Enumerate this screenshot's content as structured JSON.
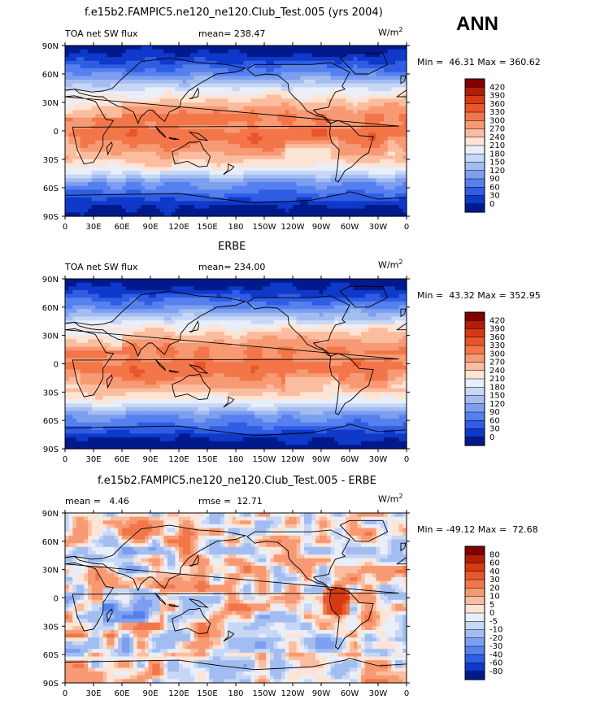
{
  "page": {
    "season": "ANN",
    "title_test": "f.e15b2.FAMPIC5.ne120_ne120.Club_Test.005 (yrs 2004)",
    "title_obs": "ERBE",
    "title_diff": "f.e15b2.FAMPIC5.ne120_ne120.Club_Test.005 - ERBE"
  },
  "chart_data": [
    {
      "type": "heatmap",
      "name": "model",
      "variable": "TOA net SW flux",
      "units": "W/m",
      "units_sup": "2",
      "stat_label": "mean=",
      "stat_value": "238.47",
      "min_label": "Min =",
      "min_value": "46.31",
      "max_label": "Max =",
      "max_value": "360.62",
      "xlim": [
        0,
        360
      ],
      "ylim": [
        -90,
        90
      ],
      "xticks": [
        "0",
        "30E",
        "60E",
        "90E",
        "120E",
        "150E",
        "180",
        "150W",
        "120W",
        "90W",
        "60W",
        "30W",
        "0"
      ],
      "yticks": [
        "90N",
        "60N",
        "30N",
        "0",
        "30S",
        "60S",
        "90S"
      ],
      "colorbar": [
        "420",
        "390",
        "360",
        "330",
        "300",
        "270",
        "240",
        "210",
        "180",
        "150",
        "120",
        "90",
        "60",
        "30",
        "0"
      ],
      "colors": [
        "#800000",
        "#b41d05",
        "#d73a12",
        "#e8562b",
        "#f27649",
        "#f79a74",
        "#fbbd9f",
        "#fde4d4",
        "#e8eefa",
        "#c7d7f5",
        "#a3bdf0",
        "#7c9ff0",
        "#5680ee",
        "#2f5de4",
        "#0e39c9",
        "#001a8c"
      ]
    },
    {
      "type": "heatmap",
      "name": "obs",
      "variable": "TOA net SW flux",
      "units": "W/m",
      "units_sup": "2",
      "stat_label": "mean=",
      "stat_value": "234.00",
      "min_label": "Min =",
      "min_value": "43.32",
      "max_label": "Max =",
      "max_value": "352.95",
      "xlim": [
        0,
        360
      ],
      "ylim": [
        -90,
        90
      ],
      "xticks": [
        "0",
        "30E",
        "60E",
        "90E",
        "120E",
        "150E",
        "180",
        "150W",
        "120W",
        "90W",
        "60W",
        "30W",
        "0"
      ],
      "yticks": [
        "90N",
        "60N",
        "30N",
        "0",
        "30S",
        "60S",
        "90S"
      ],
      "colorbar": [
        "420",
        "390",
        "360",
        "330",
        "300",
        "270",
        "240",
        "210",
        "180",
        "150",
        "120",
        "90",
        "60",
        "30",
        "0"
      ],
      "colors": [
        "#800000",
        "#b41d05",
        "#d73a12",
        "#e8562b",
        "#f27649",
        "#f79a74",
        "#fbbd9f",
        "#fde4d4",
        "#e8eefa",
        "#c7d7f5",
        "#a3bdf0",
        "#7c9ff0",
        "#5680ee",
        "#2f5de4",
        "#0e39c9",
        "#001a8c"
      ]
    },
    {
      "type": "heatmap",
      "name": "diff",
      "variable": "",
      "units": "W/m",
      "units_sup": "2",
      "stat_label": "mean =",
      "stat_value": "4.46",
      "stat2_label": "rmse =",
      "stat2_value": "12.71",
      "min_label": "Min =",
      "min_value": "-49.12",
      "max_label": "Max =",
      "max_value": "72.68",
      "xlim": [
        0,
        360
      ],
      "ylim": [
        -90,
        90
      ],
      "xticks": [
        "0",
        "30E",
        "60E",
        "90E",
        "120E",
        "150E",
        "180",
        "150W",
        "120W",
        "90W",
        "60W",
        "30W",
        "0"
      ],
      "yticks": [
        "90N",
        "60N",
        "30N",
        "0",
        "30S",
        "60S",
        "90S"
      ],
      "colorbar": [
        "80",
        "60",
        "40",
        "30",
        "20",
        "10",
        "5",
        "0",
        "-5",
        "-10",
        "-20",
        "-30",
        "-40",
        "-60",
        "-80"
      ],
      "colors": [
        "#800000",
        "#b41d05",
        "#d73a12",
        "#e8562b",
        "#f27649",
        "#f79a74",
        "#fbbd9f",
        "#fde4d4",
        "#e8eefa",
        "#c7d7f5",
        "#a3bdf0",
        "#7c9ff0",
        "#5680ee",
        "#2f5de4",
        "#0e39c9",
        "#001a8c"
      ]
    }
  ]
}
